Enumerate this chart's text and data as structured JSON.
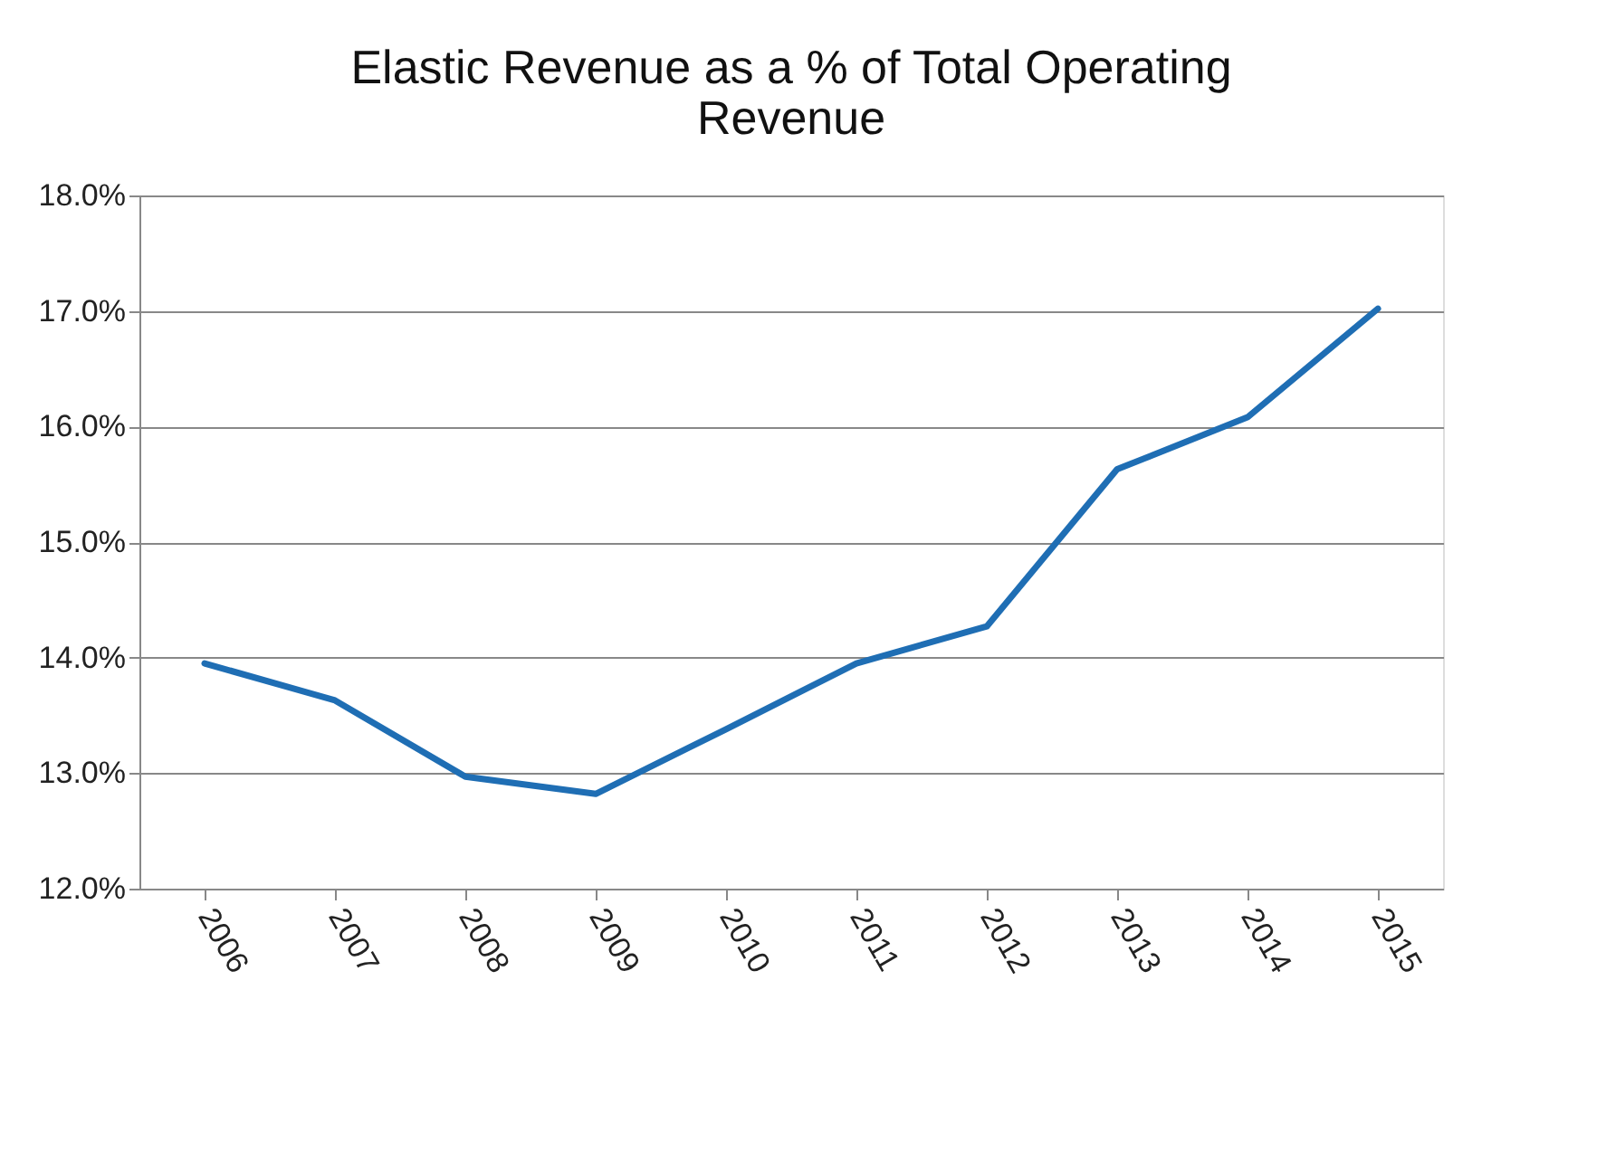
{
  "chart_data": {
    "type": "line",
    "title": [
      "Elastic Revenue as a % of Total Operating",
      "Revenue"
    ],
    "categories": [
      "2006",
      "2007",
      "2008",
      "2009",
      "2010",
      "2011",
      "2012",
      "2013",
      "2014",
      "2015"
    ],
    "series": [
      {
        "color": "#1f6eb4",
        "values": [
          13.95,
          13.63,
          12.97,
          12.82,
          13.38,
          13.95,
          14.27,
          15.63,
          16.08,
          17.02
        ]
      }
    ],
    "ylim": [
      12,
      18
    ],
    "yticks": [
      {
        "value": 12,
        "label": "12.0%"
      },
      {
        "value": 13,
        "label": "13.0%"
      },
      {
        "value": 14,
        "label": "14.0%"
      },
      {
        "value": 15,
        "label": "15.0%"
      },
      {
        "value": 16,
        "label": "16.0%"
      },
      {
        "value": 17,
        "label": "17.0%"
      },
      {
        "value": 18,
        "label": "18.0%"
      }
    ],
    "grid": "y",
    "legend": false,
    "marker": "none",
    "line_style": "solid"
  }
}
